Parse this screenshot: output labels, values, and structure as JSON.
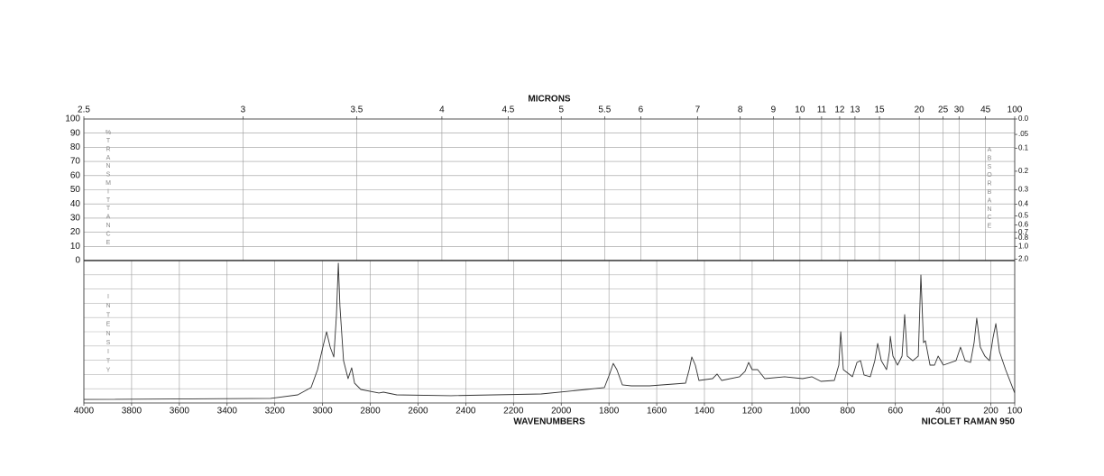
{
  "chart_data": {
    "type": "line",
    "x2label": "MICRONS",
    "xlabel": "WAVENUMBERS",
    "annotation": "NICOLET RAMAN 950",
    "xlim": [
      4000,
      100
    ],
    "xticks": [
      4000,
      3800,
      3600,
      3400,
      3200,
      3000,
      2800,
      2600,
      2400,
      2200,
      2000,
      1800,
      1600,
      1400,
      1200,
      1000,
      800,
      600,
      400,
      200,
      100
    ],
    "x2ticks": [
      2.5,
      3,
      3.5,
      4,
      4.5,
      5,
      5.5,
      6,
      7,
      8,
      9,
      10,
      11,
      12,
      13,
      15,
      20,
      25,
      30,
      45,
      100
    ],
    "transmittance": {
      "label": "%",
      "sublabel": "TRANSMITTANCE",
      "ylim": [
        0,
        100
      ],
      "yticks": [
        100,
        90,
        80,
        70,
        60,
        50,
        40,
        30,
        20,
        10,
        0
      ]
    },
    "absorbance": {
      "label": "ABSORBANCE",
      "ticks": [
        {
          "value": 0,
          "label": "0.0"
        },
        {
          "value": 0.05,
          "label": ".05"
        },
        0.1,
        0.2,
        0.3,
        0.4,
        0.5,
        0.6,
        0.7,
        0.8,
        {
          "value": 1,
          "label": "1.0"
        },
        {
          "value": 2,
          "label": "2.0"
        }
      ]
    },
    "intensity": {
      "label": "INTENSITY",
      "ylim": [
        0,
        100
      ]
    },
    "color": "#333333",
    "x": [
      4000,
      3218,
      3104,
      3048,
      3021,
      2999,
      2983,
      2968,
      2953,
      2942,
      2934,
      2927,
      2912,
      2893,
      2878,
      2866,
      2840,
      2764,
      2745,
      2689,
      2462,
      2084,
      1895,
      1819,
      1797,
      1782,
      1767,
      1744,
      1706,
      1630,
      1479,
      1464,
      1453,
      1438,
      1423,
      1366,
      1347,
      1328,
      1253,
      1230,
      1215,
      1200,
      1177,
      1147,
      1064,
      989,
      950,
      912,
      856,
      837,
      829,
      818,
      780,
      761,
      746,
      731,
      705,
      686,
      674,
      659,
      637,
      625,
      621,
      610,
      591,
      572,
      561,
      550,
      527,
      504,
      493,
      482,
      474,
      455,
      436,
      421,
      399,
      346,
      327,
      308,
      285,
      270,
      259,
      244,
      225,
      206,
      191,
      179,
      164,
      138,
      100
    ],
    "values": [
      2.5,
      3.2,
      5.7,
      10.8,
      23.4,
      39.2,
      50,
      39.2,
      32.3,
      61.4,
      98.1,
      67.7,
      29.7,
      17.1,
      24.7,
      13.9,
      9.5,
      7,
      7.6,
      5.7,
      5.1,
      6.3,
      9.5,
      10.8,
      20.3,
      27.8,
      23.4,
      12.7,
      12,
      12,
      13.9,
      23.4,
      32.3,
      26.6,
      15.8,
      17.1,
      20.3,
      15.8,
      18.4,
      22.2,
      28.5,
      23.4,
      23.4,
      17.1,
      18.4,
      17.1,
      18.4,
      15.2,
      15.8,
      26.6,
      50,
      23.4,
      18.4,
      28.5,
      29.7,
      19.6,
      18.4,
      29.7,
      41.8,
      29.7,
      23.4,
      36.1,
      46.8,
      32.9,
      26.6,
      32.9,
      62,
      32.9,
      29.7,
      32.9,
      89.9,
      42.4,
      43.7,
      26.6,
      26.6,
      32.9,
      26.6,
      29.7,
      39.2,
      29.7,
      28.5,
      42.4,
      59.5,
      39.2,
      32.9,
      29.7,
      45.6,
      55.7,
      36.1,
      23.4,
      7
    ]
  }
}
